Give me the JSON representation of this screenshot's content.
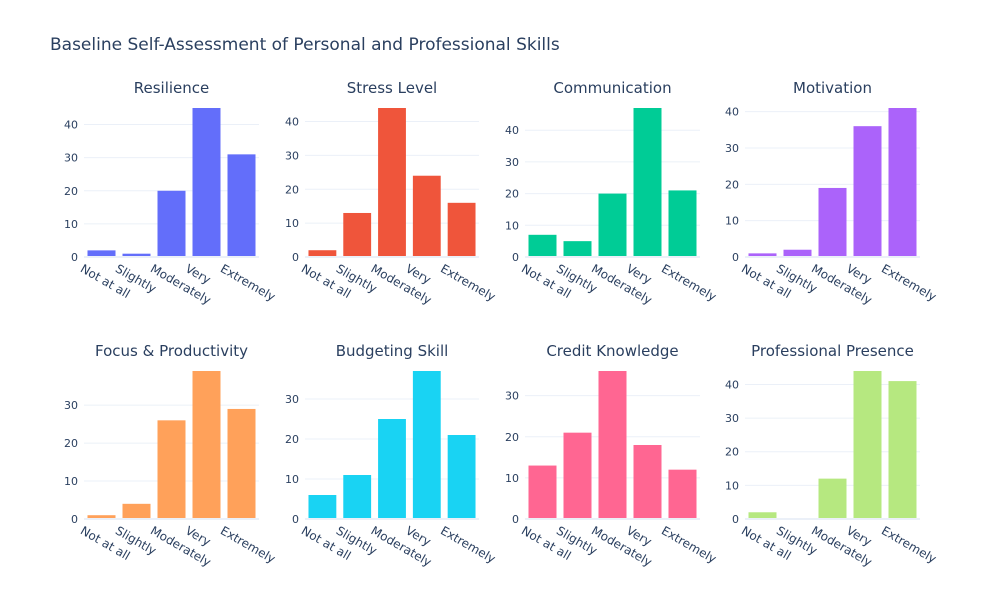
{
  "figure": {
    "title": "Baseline Self-Assessment of Personal and Professional Skills"
  },
  "chart_data": [
    {
      "type": "bar",
      "title": "Resilience",
      "color": "#636efa",
      "categories": [
        "Not at all",
        "Slightly",
        "Moderately",
        "Very",
        "Extremely"
      ],
      "values": [
        2,
        1,
        20,
        45,
        31
      ],
      "ylim": [
        0,
        45
      ],
      "yticks": [
        0,
        10,
        20,
        30,
        40
      ]
    },
    {
      "type": "bar",
      "title": "Stress Level",
      "color": "#ef553b",
      "categories": [
        "Not at all",
        "Slightly",
        "Moderately",
        "Very",
        "Extremely"
      ],
      "values": [
        2,
        13,
        44,
        24,
        16
      ],
      "ylim": [
        0,
        44
      ],
      "yticks": [
        0,
        10,
        20,
        30,
        40
      ]
    },
    {
      "type": "bar",
      "title": "Communication",
      "color": "#00cc96",
      "categories": [
        "Not at all",
        "Slightly",
        "Moderately",
        "Very",
        "Extremely"
      ],
      "values": [
        7,
        5,
        20,
        47,
        21
      ],
      "ylim": [
        0,
        47
      ],
      "yticks": [
        0,
        10,
        20,
        30,
        40
      ]
    },
    {
      "type": "bar",
      "title": "Motivation",
      "color": "#ab63fa",
      "categories": [
        "Not at all",
        "Slightly",
        "Moderately",
        "Very",
        "Extremely"
      ],
      "values": [
        1,
        2,
        19,
        36,
        41
      ],
      "ylim": [
        0,
        41
      ],
      "yticks": [
        0,
        10,
        20,
        30,
        40
      ]
    },
    {
      "type": "bar",
      "title": "Focus & Productivity",
      "color": "#ffa15a",
      "categories": [
        "Not at all",
        "Slightly",
        "Moderately",
        "Very",
        "Extremely"
      ],
      "values": [
        1,
        4,
        26,
        39,
        29
      ],
      "ylim": [
        0,
        39
      ],
      "yticks": [
        0,
        10,
        20,
        30
      ]
    },
    {
      "type": "bar",
      "title": "Budgeting Skill",
      "color": "#19d3f3",
      "categories": [
        "Not at all",
        "Slightly",
        "Moderately",
        "Very",
        "Extremely"
      ],
      "values": [
        6,
        11,
        25,
        37,
        21
      ],
      "ylim": [
        0,
        37
      ],
      "yticks": [
        0,
        10,
        20,
        30
      ]
    },
    {
      "type": "bar",
      "title": "Credit Knowledge",
      "color": "#ff6692",
      "categories": [
        "Not at all",
        "Slightly",
        "Moderately",
        "Very",
        "Extremely"
      ],
      "values": [
        13,
        21,
        36,
        18,
        12
      ],
      "ylim": [
        0,
        36
      ],
      "yticks": [
        0,
        10,
        20,
        30
      ]
    },
    {
      "type": "bar",
      "title": "Professional Presence",
      "color": "#b6e880",
      "categories": [
        "Not at all",
        "Slightly",
        "Moderately",
        "Very",
        "Extremely"
      ],
      "values": [
        2,
        0,
        12,
        44,
        41
      ],
      "ylim": [
        0,
        44
      ],
      "yticks": [
        0,
        10,
        20,
        30,
        40
      ]
    }
  ]
}
